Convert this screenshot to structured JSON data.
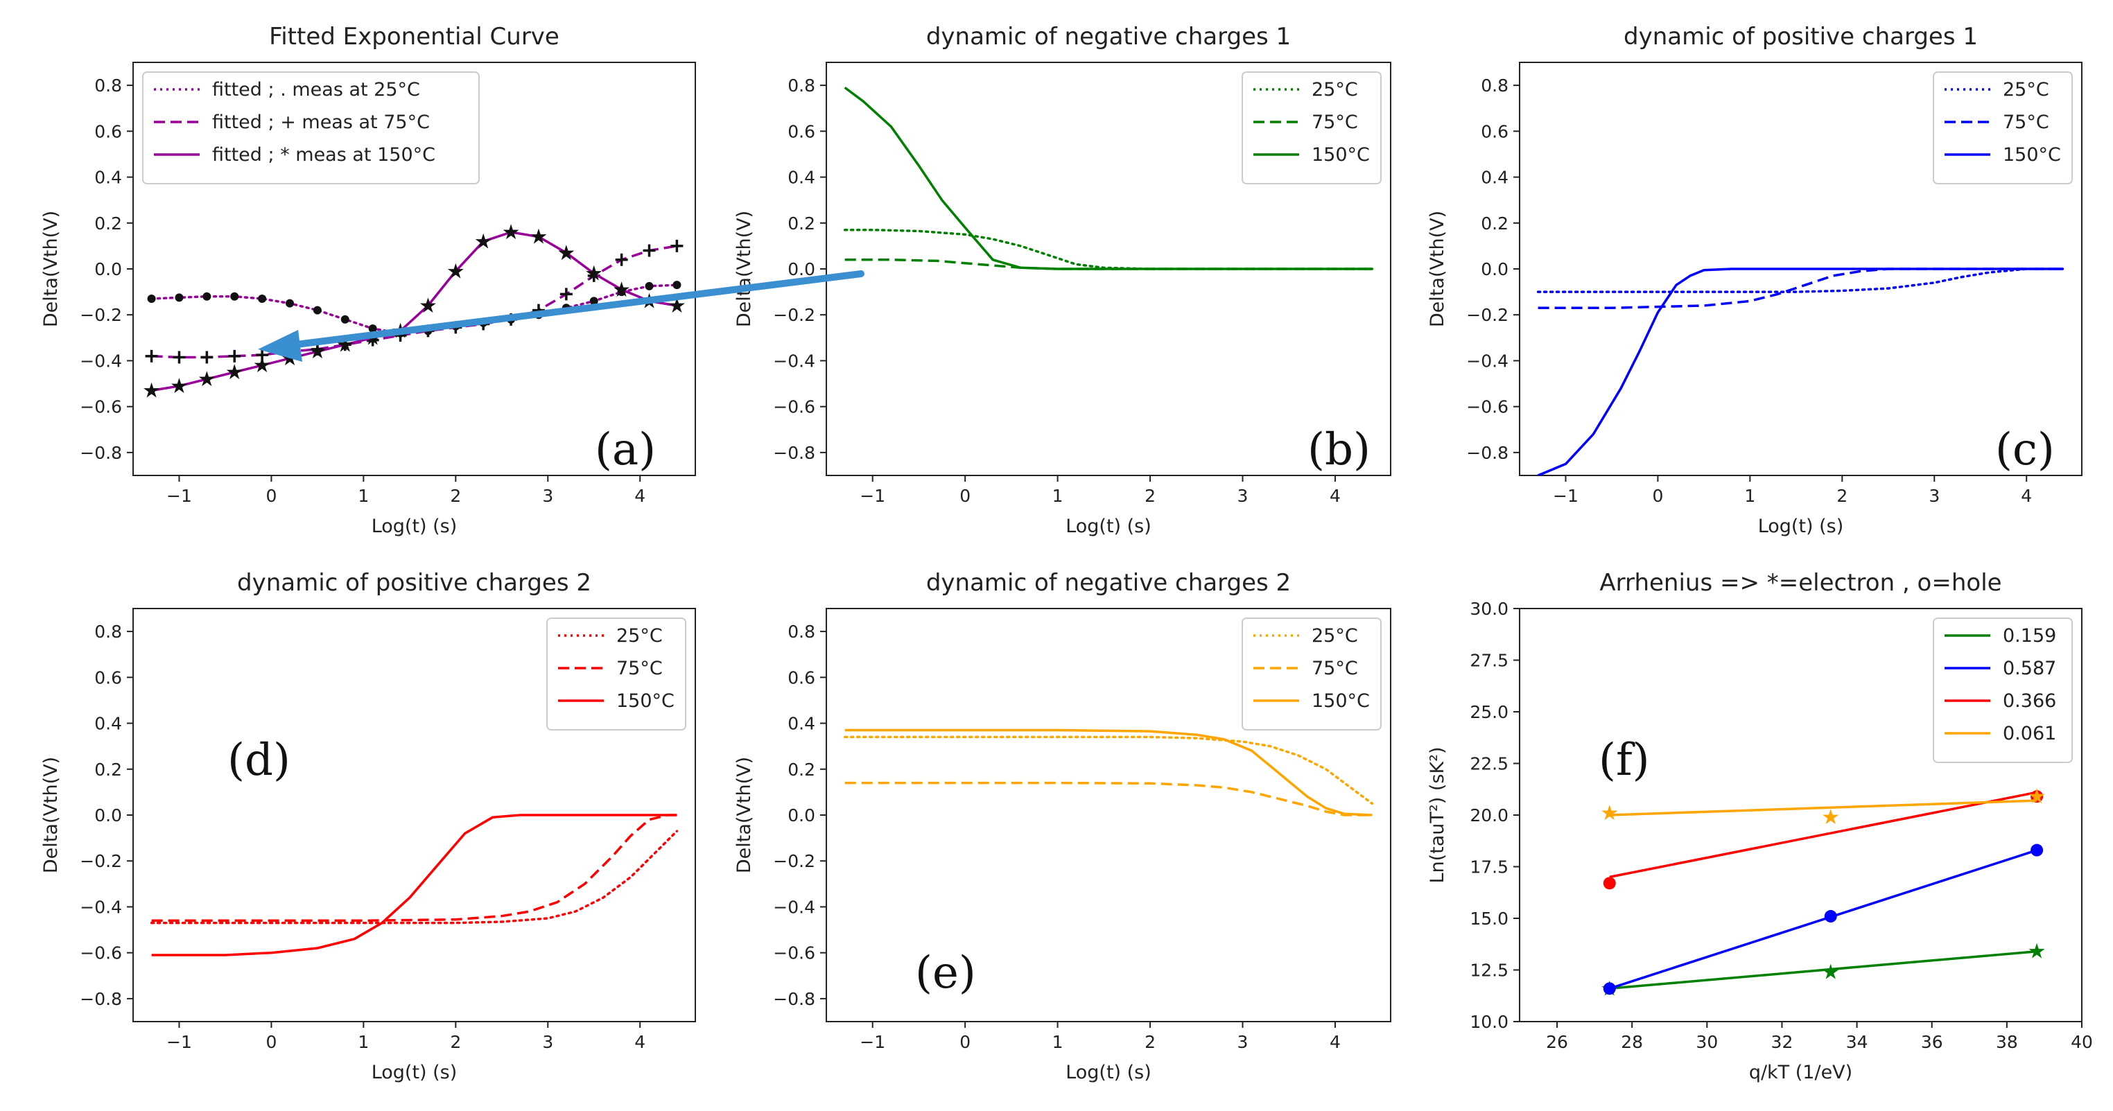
{
  "chart_data": [
    {
      "id": "a",
      "type": "line",
      "title": "Fitted Exponential Curve",
      "xlabel": "Log(t) (s)",
      "ylabel": "Delta(Vth(V)",
      "xlim": [
        -1.5,
        4.6
      ],
      "ylim": [
        -0.9,
        0.9
      ],
      "xticks": [
        -1,
        0,
        1,
        2,
        3,
        4
      ],
      "yticks": [
        -0.8,
        -0.6,
        -0.4,
        -0.2,
        0.0,
        0.2,
        0.4,
        0.6,
        0.8
      ],
      "panel_label": "(a)",
      "legend_position": "top-left",
      "series": [
        {
          "name": "fitted ; . meas at 25°C",
          "color": "#990099",
          "style": "dotted",
          "marker": "dot",
          "x": [
            -1.3,
            -1.0,
            -0.7,
            -0.4,
            -0.1,
            0.2,
            0.5,
            0.8,
            1.1,
            1.4,
            1.7,
            2.0,
            2.3,
            2.6,
            2.9,
            3.2,
            3.5,
            3.8,
            4.1,
            4.4
          ],
          "y": [
            -0.13,
            -0.125,
            -0.12,
            -0.12,
            -0.13,
            -0.15,
            -0.18,
            -0.22,
            -0.26,
            -0.28,
            -0.27,
            -0.25,
            -0.235,
            -0.22,
            -0.2,
            -0.17,
            -0.14,
            -0.1,
            -0.075,
            -0.07
          ]
        },
        {
          "name": "fitted ; + meas at 75°C",
          "color": "#990099",
          "style": "dashed",
          "marker": "plus",
          "x": [
            -1.3,
            -1.0,
            -0.7,
            -0.4,
            -0.1,
            0.2,
            0.5,
            0.8,
            1.1,
            1.4,
            1.7,
            2.0,
            2.3,
            2.6,
            2.9,
            3.2,
            3.5,
            3.8,
            4.1,
            4.4
          ],
          "y": [
            -0.38,
            -0.385,
            -0.385,
            -0.38,
            -0.375,
            -0.36,
            -0.35,
            -0.33,
            -0.31,
            -0.29,
            -0.27,
            -0.255,
            -0.24,
            -0.22,
            -0.18,
            -0.11,
            -0.03,
            0.04,
            0.08,
            0.1
          ]
        },
        {
          "name": "fitted ; * meas at 150°C",
          "color": "#990099",
          "style": "solid",
          "marker": "star",
          "x": [
            -1.3,
            -1.0,
            -0.7,
            -0.4,
            -0.1,
            0.2,
            0.5,
            0.8,
            1.1,
            1.4,
            1.7,
            2.0,
            2.3,
            2.6,
            2.9,
            3.2,
            3.5,
            3.8,
            4.1,
            4.4
          ],
          "y": [
            -0.53,
            -0.51,
            -0.48,
            -0.45,
            -0.42,
            -0.39,
            -0.36,
            -0.33,
            -0.3,
            -0.27,
            -0.16,
            -0.01,
            0.12,
            0.16,
            0.14,
            0.07,
            -0.02,
            -0.09,
            -0.14,
            -0.16
          ]
        }
      ]
    },
    {
      "id": "b",
      "type": "line",
      "title": "dynamic of negative charges 1",
      "xlabel": "Log(t) (s)",
      "ylabel": "Delta(Vth(V)",
      "xlim": [
        -1.5,
        4.6
      ],
      "ylim": [
        -0.9,
        0.9
      ],
      "xticks": [
        -1,
        0,
        1,
        2,
        3,
        4
      ],
      "yticks": [
        -0.8,
        -0.6,
        -0.4,
        -0.2,
        0.0,
        0.2,
        0.4,
        0.6,
        0.8
      ],
      "panel_label": "(b)",
      "legend_position": "top-right",
      "series": [
        {
          "name": "25°C",
          "color": "#008000",
          "style": "dotted",
          "x": [
            -1.3,
            -1.0,
            -0.5,
            0.0,
            0.3,
            0.6,
            0.9,
            1.2,
            1.5,
            2.0,
            3.0,
            4.4
          ],
          "y": [
            0.17,
            0.17,
            0.165,
            0.15,
            0.13,
            0.1,
            0.06,
            0.02,
            0.005,
            0.0,
            0.0,
            0.0
          ]
        },
        {
          "name": "75°C",
          "color": "#008000",
          "style": "dashed",
          "x": [
            -1.3,
            -0.8,
            -0.3,
            0.0,
            0.3,
            0.6,
            1.0,
            2.0,
            4.4
          ],
          "y": [
            0.04,
            0.04,
            0.035,
            0.025,
            0.015,
            0.005,
            0.0,
            0.0,
            0.0
          ]
        },
        {
          "name": "150°C",
          "color": "#008000",
          "style": "solid",
          "x": [
            -1.3,
            -1.1,
            -0.8,
            -0.5,
            -0.25,
            0.0,
            0.3,
            0.6,
            1.0,
            2.0,
            4.4
          ],
          "y": [
            0.79,
            0.73,
            0.62,
            0.45,
            0.3,
            0.18,
            0.04,
            0.005,
            0.0,
            0.0,
            0.0
          ]
        }
      ]
    },
    {
      "id": "c",
      "type": "line",
      "title": "dynamic of positive charges 1",
      "xlabel": "Log(t) (s)",
      "ylabel": "Delta(Vth(V)",
      "xlim": [
        -1.5,
        4.6
      ],
      "ylim": [
        -0.9,
        0.9
      ],
      "xticks": [
        -1,
        0,
        1,
        2,
        3,
        4
      ],
      "yticks": [
        -0.8,
        -0.6,
        -0.4,
        -0.2,
        0.0,
        0.2,
        0.4,
        0.6,
        0.8
      ],
      "panel_label": "(c)",
      "legend_position": "top-right",
      "series": [
        {
          "name": "25°C",
          "color": "#0000ff",
          "style": "dotted",
          "x": [
            -1.3,
            -0.5,
            0.5,
            1.5,
            2.0,
            2.5,
            3.0,
            3.3,
            3.6,
            4.0,
            4.4
          ],
          "y": [
            -0.1,
            -0.1,
            -0.1,
            -0.1,
            -0.095,
            -0.085,
            -0.06,
            -0.035,
            -0.015,
            0.0,
            0.0
          ]
        },
        {
          "name": "75°C",
          "color": "#0000ff",
          "style": "dashed",
          "x": [
            -1.3,
            -0.5,
            0.0,
            0.5,
            1.0,
            1.3,
            1.6,
            1.9,
            2.2,
            2.5,
            3.0,
            4.4
          ],
          "y": [
            -0.17,
            -0.17,
            -0.165,
            -0.16,
            -0.14,
            -0.11,
            -0.07,
            -0.03,
            -0.01,
            0.0,
            0.0,
            0.0
          ]
        },
        {
          "name": "150°C",
          "color": "#0000ff",
          "style": "solid",
          "x": [
            -1.3,
            -1.0,
            -0.7,
            -0.4,
            -0.2,
            0.0,
            0.2,
            0.35,
            0.5,
            0.8,
            1.5,
            4.4
          ],
          "y": [
            -0.9,
            -0.85,
            -0.72,
            -0.52,
            -0.36,
            -0.19,
            -0.07,
            -0.03,
            -0.005,
            0.0,
            0.0,
            0.0
          ]
        }
      ]
    },
    {
      "id": "d",
      "type": "line",
      "title": "dynamic of positive charges 2",
      "xlabel": "Log(t) (s)",
      "ylabel": "Delta(Vth(V)",
      "xlim": [
        -1.5,
        4.6
      ],
      "ylim": [
        -0.9,
        0.9
      ],
      "xticks": [
        -1,
        0,
        1,
        2,
        3,
        4
      ],
      "yticks": [
        -0.8,
        -0.6,
        -0.4,
        -0.2,
        0.0,
        0.2,
        0.4,
        0.6,
        0.8
      ],
      "panel_label": "(d)",
      "legend_position": "top-right",
      "series": [
        {
          "name": "25°C",
          "color": "#ff0000",
          "style": "dotted",
          "x": [
            -1.3,
            0.0,
            1.0,
            2.0,
            2.5,
            3.0,
            3.3,
            3.6,
            3.9,
            4.2,
            4.4
          ],
          "y": [
            -0.47,
            -0.47,
            -0.47,
            -0.47,
            -0.465,
            -0.45,
            -0.42,
            -0.36,
            -0.27,
            -0.15,
            -0.07
          ]
        },
        {
          "name": "75°C",
          "color": "#ff0000",
          "style": "dashed",
          "x": [
            -1.3,
            0.0,
            1.0,
            2.0,
            2.5,
            2.8,
            3.1,
            3.4,
            3.7,
            3.9,
            4.1,
            4.3,
            4.4
          ],
          "y": [
            -0.46,
            -0.46,
            -0.46,
            -0.455,
            -0.44,
            -0.42,
            -0.38,
            -0.3,
            -0.18,
            -0.09,
            -0.02,
            0.0,
            0.0
          ]
        },
        {
          "name": "150°C",
          "color": "#ff0000",
          "style": "solid",
          "x": [
            -1.3,
            -0.5,
            0.0,
            0.5,
            0.9,
            1.2,
            1.5,
            1.8,
            2.1,
            2.4,
            2.7,
            3.0,
            4.4
          ],
          "y": [
            -0.61,
            -0.61,
            -0.6,
            -0.58,
            -0.54,
            -0.47,
            -0.36,
            -0.22,
            -0.08,
            -0.01,
            0.0,
            0.0,
            0.0
          ]
        }
      ]
    },
    {
      "id": "e",
      "type": "line",
      "title": "dynamic of negative charges 2",
      "xlabel": "Log(t) (s)",
      "ylabel": "Delta(Vth(V)",
      "xlim": [
        -1.5,
        4.6
      ],
      "ylim": [
        -0.9,
        0.9
      ],
      "xticks": [
        -1,
        0,
        1,
        2,
        3,
        4
      ],
      "yticks": [
        -0.8,
        -0.6,
        -0.4,
        -0.2,
        0.0,
        0.2,
        0.4,
        0.6,
        0.8
      ],
      "panel_label": "(e)",
      "legend_position": "top-right",
      "series": [
        {
          "name": "25°C",
          "color": "#ffa500",
          "style": "dotted",
          "x": [
            -1.3,
            0.0,
            1.0,
            2.0,
            2.5,
            3.0,
            3.3,
            3.6,
            3.9,
            4.2,
            4.4
          ],
          "y": [
            0.34,
            0.34,
            0.34,
            0.34,
            0.335,
            0.32,
            0.3,
            0.26,
            0.2,
            0.11,
            0.05
          ]
        },
        {
          "name": "75°C",
          "color": "#ffa500",
          "style": "dashed",
          "x": [
            -1.3,
            0.0,
            1.0,
            2.0,
            2.5,
            2.8,
            3.1,
            3.4,
            3.7,
            3.9,
            4.1,
            4.3,
            4.4
          ],
          "y": [
            0.14,
            0.14,
            0.14,
            0.138,
            0.13,
            0.12,
            0.1,
            0.07,
            0.04,
            0.015,
            0.0,
            0.0,
            0.0
          ]
        },
        {
          "name": "150°C",
          "color": "#ffa500",
          "style": "solid",
          "x": [
            -1.3,
            0.0,
            1.0,
            2.0,
            2.5,
            2.8,
            3.1,
            3.4,
            3.7,
            3.9,
            4.1,
            4.4
          ],
          "y": [
            0.37,
            0.37,
            0.37,
            0.365,
            0.35,
            0.33,
            0.28,
            0.18,
            0.08,
            0.03,
            0.005,
            0.0
          ]
        }
      ]
    },
    {
      "id": "f",
      "type": "line",
      "title": "Arrhenius => *=electron , o=hole",
      "xlabel": "q/kT (1/eV)",
      "ylabel": "Ln(tauT²) (sK²)",
      "xlim": [
        25,
        40
      ],
      "ylim": [
        10,
        30
      ],
      "xticks": [
        26,
        28,
        30,
        32,
        34,
        36,
        38,
        40
      ],
      "yticks": [
        10.0,
        12.5,
        15.0,
        17.5,
        20.0,
        22.5,
        25.0,
        27.5,
        30.0
      ],
      "panel_label": "(f)",
      "legend_position": "top-right",
      "series": [
        {
          "name": "0.159",
          "color": "#008000",
          "style": "solid",
          "marker": "star",
          "x": [
            27.4,
            38.8
          ],
          "y": [
            11.6,
            13.4
          ],
          "points_x": [
            27.4,
            33.3,
            38.8
          ],
          "points_y": [
            11.6,
            12.4,
            13.4
          ]
        },
        {
          "name": "0.587",
          "color": "#0000ff",
          "style": "solid",
          "marker": "dot",
          "x": [
            27.4,
            38.8
          ],
          "y": [
            11.6,
            18.3
          ],
          "points_x": [
            27.4,
            33.3,
            38.8
          ],
          "points_y": [
            11.6,
            15.1,
            18.3
          ]
        },
        {
          "name": "0.366",
          "color": "#ff0000",
          "style": "solid",
          "marker": "dot",
          "x": [
            27.4,
            38.8
          ],
          "y": [
            17.0,
            21.1
          ],
          "points_x": [
            27.4,
            38.8
          ],
          "points_y": [
            16.7,
            20.9
          ]
        },
        {
          "name": "0.061",
          "color": "#ffa500",
          "style": "solid",
          "marker": "star",
          "x": [
            27.4,
            38.8
          ],
          "y": [
            20.0,
            20.7
          ],
          "points_x": [
            27.4,
            33.3,
            38.8
          ],
          "points_y": [
            20.1,
            19.9,
            20.9
          ]
        }
      ]
    }
  ],
  "arrow_color": "#3a8fd0"
}
